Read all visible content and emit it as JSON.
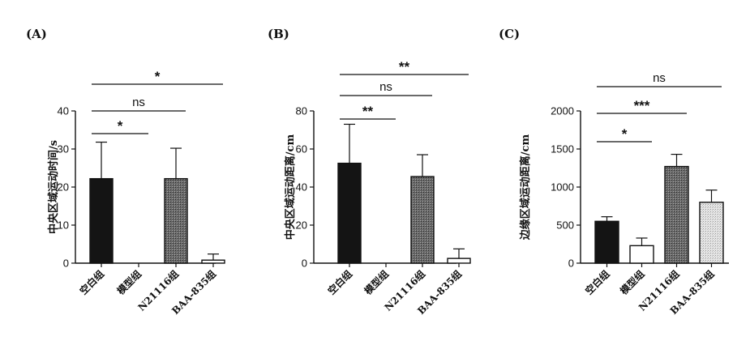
{
  "colors": {
    "ink": "#111111",
    "black_bar": "#141414",
    "dark_gray_bar": "#555555",
    "light_gray_bar": "#cfcfcf",
    "white_bar": "#ffffff"
  },
  "chart_data": [
    {
      "panel": "(A)",
      "type": "bar",
      "categories": [
        "空白组",
        "模型组",
        "N21116组",
        "BAA-835组"
      ],
      "values": [
        22.2,
        0,
        22.2,
        0.8
      ],
      "errors": [
        9.6,
        0,
        8.0,
        1.6
      ],
      "bar_fills": [
        "black",
        "white",
        "dark-gray-pattern",
        "white"
      ],
      "ylabel": "中央区域运动时间/s",
      "ylim": [
        0,
        40
      ],
      "yticks": [
        0,
        10,
        20,
        30,
        40
      ],
      "significance": [
        {
          "from": 0,
          "to": 1,
          "label": "*"
        },
        {
          "from": 0,
          "to": 2,
          "label": "ns"
        },
        {
          "from": 0,
          "to": 3,
          "label": "*"
        }
      ]
    },
    {
      "panel": "(B)",
      "type": "bar",
      "categories": [
        "空白组",
        "模型组",
        "N21116组",
        "BAA-835组"
      ],
      "values": [
        52.5,
        0,
        45.5,
        2.5
      ],
      "errors": [
        20.5,
        0,
        11.5,
        5.0
      ],
      "bar_fills": [
        "black",
        "white",
        "dark-gray-pattern",
        "white"
      ],
      "ylabel": "中央区域运动距离/cm",
      "ylim": [
        0,
        80
      ],
      "yticks": [
        0,
        20,
        40,
        60,
        80
      ],
      "significance": [
        {
          "from": 0,
          "to": 1,
          "label": "**"
        },
        {
          "from": 0,
          "to": 2,
          "label": "ns"
        },
        {
          "from": 0,
          "to": 3,
          "label": "**"
        }
      ]
    },
    {
      "panel": "(C)",
      "type": "bar",
      "categories": [
        "空白组",
        "模型组",
        "N21116组",
        "BAA-835组"
      ],
      "values": [
        550,
        230,
        1270,
        800
      ],
      "errors": [
        60,
        100,
        160,
        160
      ],
      "bar_fills": [
        "black",
        "white",
        "dark-gray-pattern",
        "light-gray-pattern"
      ],
      "ylabel": "边缘区域运动距离/cm",
      "ylim": [
        0,
        2000
      ],
      "yticks": [
        0,
        500,
        1000,
        1500,
        2000
      ],
      "significance": [
        {
          "from": 0,
          "to": 1,
          "label": "*"
        },
        {
          "from": 0,
          "to": 2,
          "label": "***"
        },
        {
          "from": 0,
          "to": 3,
          "label": "ns"
        }
      ]
    }
  ]
}
